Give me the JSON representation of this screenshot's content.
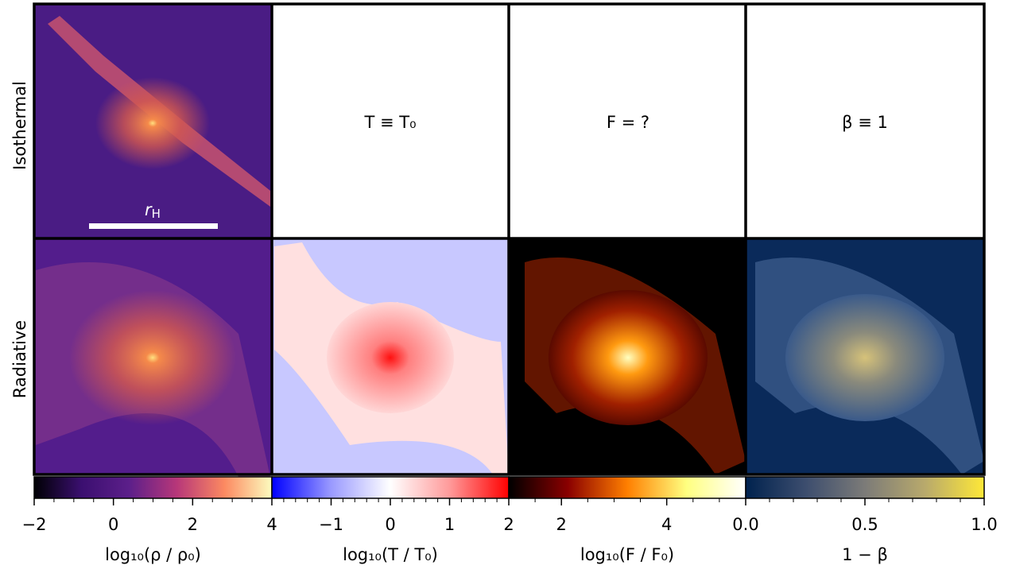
{
  "chart_data": {
    "type": "panel-grid",
    "row_labels": [
      "Isothermal",
      "Radiative"
    ],
    "scale_bar": {
      "symbol": "r",
      "subscript": "H"
    },
    "panel_texts": [
      "T ≡ T₀",
      "F = ?",
      "β ≡ 1"
    ],
    "colorbars": [
      {
        "label": "log₁₀(ρ / ρ₀)",
        "xlim": [
          -2,
          4
        ],
        "xticks": [
          {
            "value": -2,
            "label": "−2"
          },
          0,
          2,
          4
        ],
        "minor_ticks": [
          -1.5,
          -1,
          -0.5,
          0.5,
          1,
          1.5,
          2.5,
          3,
          3.5
        ],
        "colors": [
          "#000004",
          "#3b0f70",
          "#5c1f8a",
          "#b73779",
          "#fc8961",
          "#fcfdbf"
        ]
      },
      {
        "label": "log₁₀(T / T₀)",
        "xlim": [
          -2,
          2
        ],
        "xticks": [
          {
            "value": -1,
            "label": "−1"
          },
          0,
          1,
          2
        ],
        "minor_ticks": [
          -1.8,
          -1.6,
          -1.4,
          -1.2,
          -0.8,
          -0.6,
          -0.4,
          -0.2,
          0.2,
          0.4,
          0.6,
          0.8,
          1.2,
          1.4,
          1.6,
          1.8
        ],
        "colors": [
          "#0000ff",
          "#9a9aff",
          "#ffffff",
          "#ff9a9a",
          "#ff0000"
        ]
      },
      {
        "label": "log₁₀(F / F₀)",
        "xlim": [
          1,
          5.5
        ],
        "xticks": [
          2,
          4
        ],
        "minor_ticks": [
          1.5,
          2.5,
          3,
          3.5,
          4.5,
          5
        ],
        "colors": [
          "#000000",
          "#8a0000",
          "#ff7f00",
          "#ffff80",
          "#ffffff"
        ]
      },
      {
        "label": "1 − β",
        "xlim": [
          0,
          1
        ],
        "xticks": [
          {
            "value": 0,
            "label": "0.0"
          },
          {
            "value": 0.5,
            "label": "0.5"
          },
          {
            "value": 1,
            "label": "1.0"
          }
        ],
        "minor_ticks": [
          0.1,
          0.2,
          0.3,
          0.4,
          0.6,
          0.7,
          0.8,
          0.9
        ],
        "colors": [
          "#00224e",
          "#3c4d6e",
          "#7c7b78",
          "#b8a96c",
          "#fee838"
        ]
      }
    ]
  }
}
